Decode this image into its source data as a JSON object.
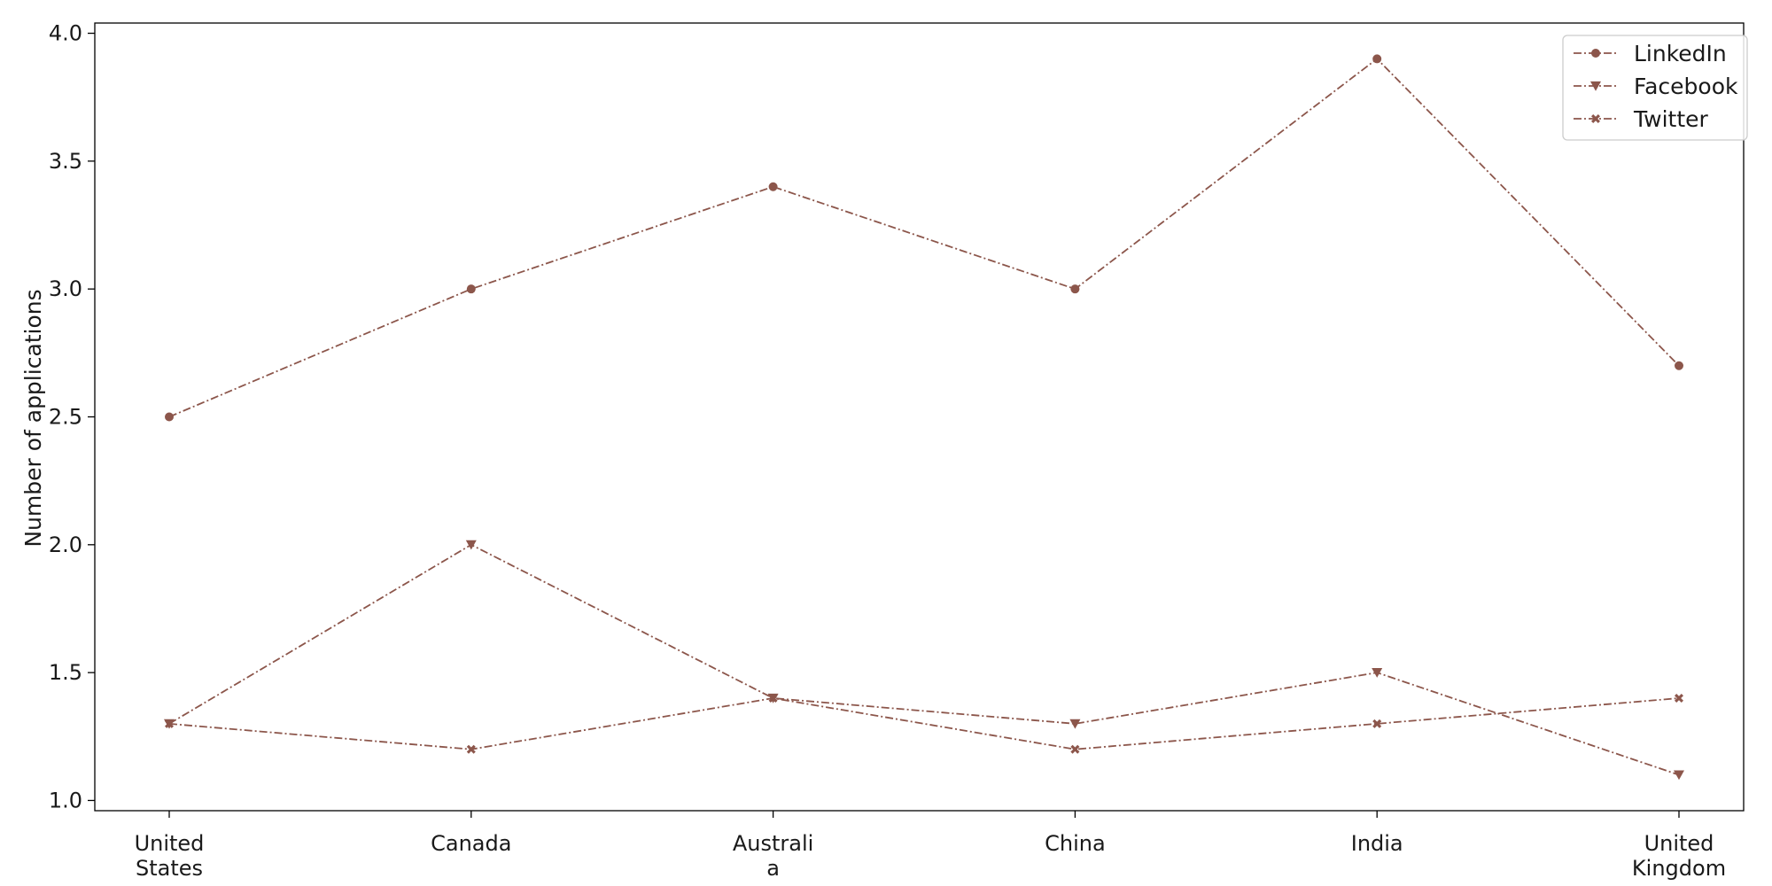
{
  "chart_data": {
    "type": "line",
    "title": "",
    "xlabel": "",
    "ylabel": "Number of applications",
    "categories": [
      [
        "United",
        "States"
      ],
      [
        "Canada"
      ],
      [
        "Australi",
        "a"
      ],
      [
        "China"
      ],
      [
        "India"
      ],
      [
        "United",
        "Kingdom"
      ]
    ],
    "ylim": [
      0.96,
      4.04
    ],
    "yticks": [
      "1.0",
      "1.5",
      "2.0",
      "2.5",
      "3.0",
      "3.5",
      "4.0"
    ],
    "grid": false,
    "legend_position": "top-right",
    "color": "#8c564b",
    "line_style": "dash-dot",
    "series": [
      {
        "name": "LinkedIn",
        "marker": "circle",
        "values": [
          2.5,
          3.0,
          3.4,
          3.0,
          3.9,
          2.7
        ]
      },
      {
        "name": "Facebook",
        "marker": "triangle-down",
        "values": [
          1.3,
          2.0,
          1.4,
          1.3,
          1.5,
          1.1
        ]
      },
      {
        "name": "Twitter",
        "marker": "x",
        "values": [
          1.3,
          1.2,
          1.4,
          1.2,
          1.3,
          1.4
        ]
      }
    ]
  }
}
